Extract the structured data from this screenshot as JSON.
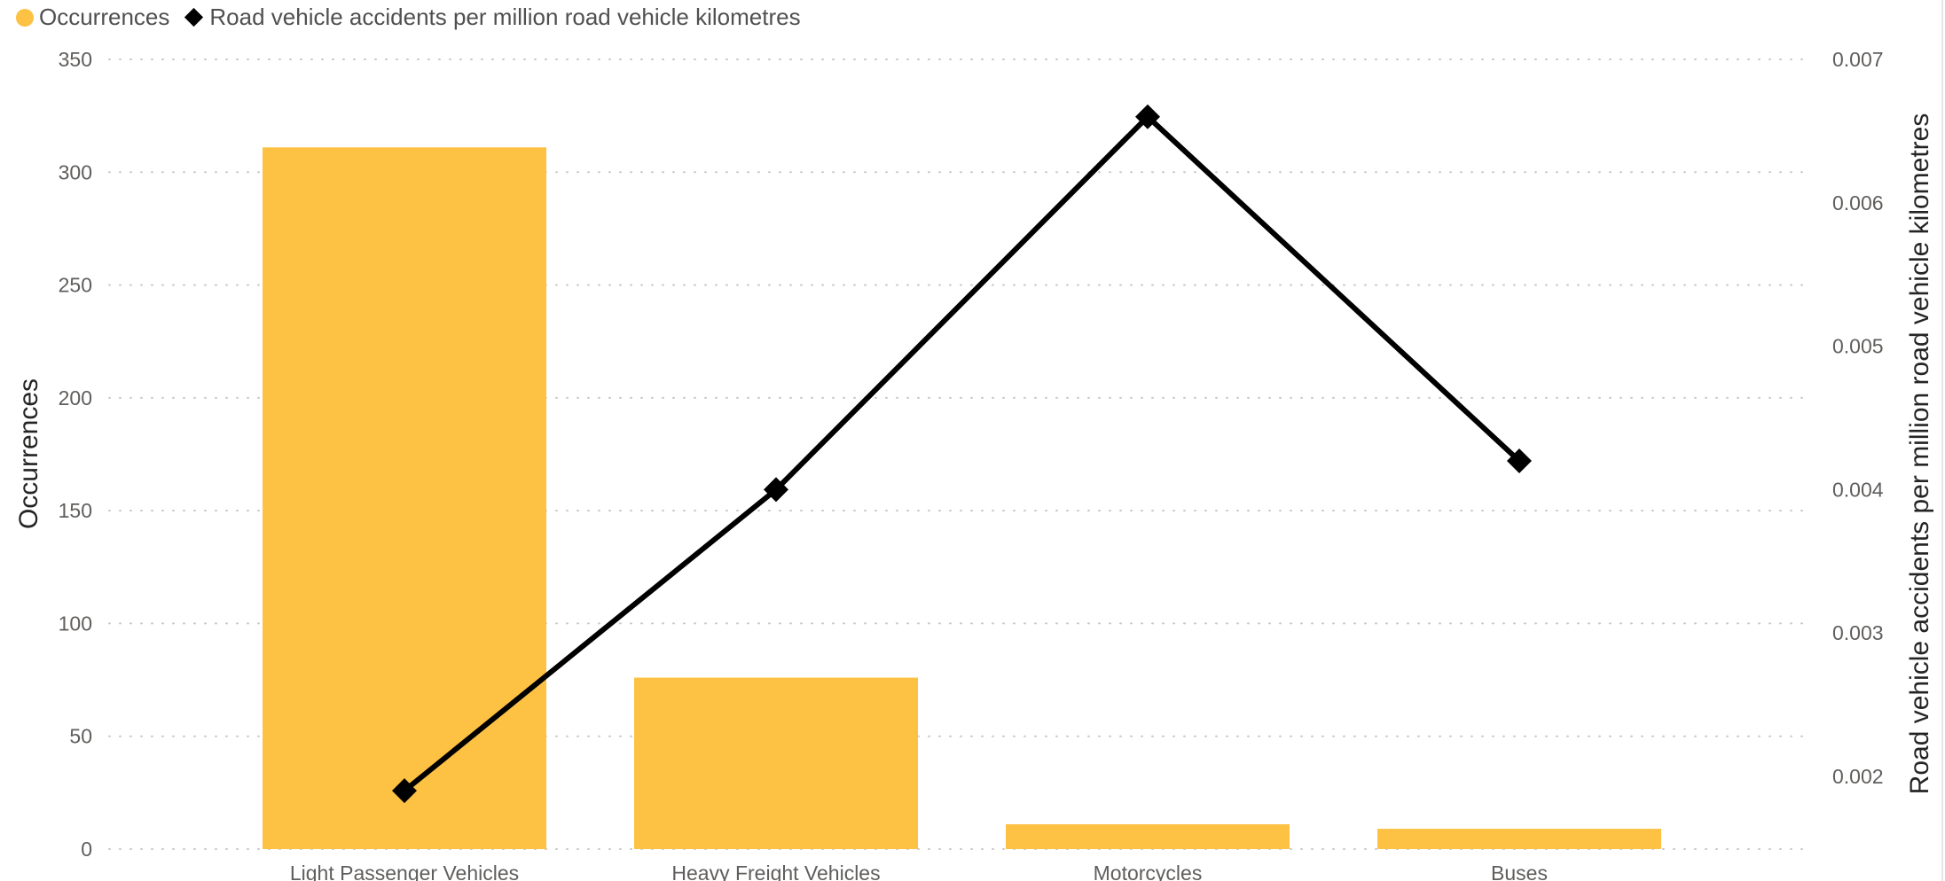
{
  "colors": {
    "bar": "#FDC143",
    "line": "#000000",
    "grid": "#c8c8c8",
    "tick_text": "#605e5c",
    "axis_title": "#252423"
  },
  "legend": {
    "items": [
      {
        "label": "Occurrences",
        "marker": "circle"
      },
      {
        "label": "Road vehicle accidents per million road vehicle kilometres",
        "marker": "diamond"
      }
    ]
  },
  "chart_data": {
    "type": "bar",
    "categories": [
      "Light Passenger Vehicles",
      "Heavy Freight Vehicles",
      "Motorcycles",
      "Buses"
    ],
    "series": [
      {
        "name": "Occurrences",
        "type": "bar",
        "axis": "left",
        "values": [
          311,
          76,
          11,
          9
        ]
      },
      {
        "name": "Road vehicle accidents per million road vehicle kilometres",
        "type": "line",
        "axis": "right",
        "marker": "diamond",
        "values": [
          0.0019,
          0.004,
          0.0066,
          0.0042
        ]
      }
    ],
    "ylabel": "Occurrences",
    "ylabel_right": "Road vehicle accidents per million road vehicle kilometres",
    "ylim": [
      0,
      350
    ],
    "ylim_right": [
      0.0015,
      0.007
    ],
    "yticks": [
      "0",
      "50",
      "100",
      "150",
      "200",
      "250",
      "300",
      "350"
    ],
    "yticks_right": [
      "0.002",
      "0.003",
      "0.004",
      "0.005",
      "0.006",
      "0.007"
    ],
    "grid": true,
    "grid_style": "dotted",
    "legend_position": "top-left"
  }
}
